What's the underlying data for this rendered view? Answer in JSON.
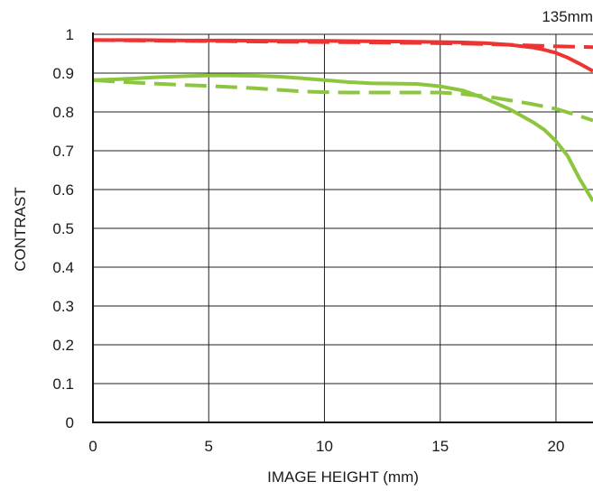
{
  "chart_data": {
    "type": "line",
    "annotation": "135mm",
    "xlabel": "IMAGE HEIGHT (mm)",
    "ylabel": "CONTRAST",
    "xlim": [
      0,
      21.6
    ],
    "ylim": [
      0,
      1
    ],
    "xticks": [
      0,
      5,
      10,
      15,
      20
    ],
    "xtick_labels": [
      "0",
      "5",
      "10",
      "15",
      "20"
    ],
    "yticks": [
      0,
      0.1,
      0.2,
      0.3,
      0.4,
      0.5,
      0.6,
      0.7,
      0.8,
      0.9,
      1
    ],
    "ytick_labels": [
      "0",
      "0.1",
      "0.2",
      "0.3",
      "0.4",
      "0.5",
      "0.6",
      "0.7",
      "0.8",
      "0.9",
      "1"
    ],
    "grid": true,
    "series": [
      {
        "color": "#ee3333",
        "dash": "solid",
        "x": [
          0,
          2,
          4,
          6,
          8,
          10,
          12,
          14,
          15,
          16,
          17,
          18,
          19,
          19.5,
          20,
          20.5,
          21,
          21.6
        ],
        "y": [
          0.985,
          0.985,
          0.984,
          0.984,
          0.983,
          0.983,
          0.982,
          0.981,
          0.98,
          0.979,
          0.977,
          0.973,
          0.966,
          0.96,
          0.952,
          0.94,
          0.925,
          0.905
        ]
      },
      {
        "color": "#ee3333",
        "dash": "dashed",
        "x": [
          0,
          2,
          4,
          6,
          8,
          10,
          12,
          14,
          15,
          16,
          17,
          18,
          19,
          20,
          21,
          21.6
        ],
        "y": [
          0.985,
          0.984,
          0.983,
          0.982,
          0.981,
          0.98,
          0.979,
          0.978,
          0.977,
          0.976,
          0.975,
          0.973,
          0.971,
          0.969,
          0.968,
          0.967
        ]
      },
      {
        "color": "#8cc63f",
        "dash": "solid",
        "x": [
          0,
          1,
          2,
          3,
          4,
          5,
          6,
          7,
          8,
          9,
          10,
          11,
          12,
          13,
          14,
          15,
          16,
          17,
          18,
          19,
          19.5,
          20,
          20.5,
          21,
          21.6
        ],
        "y": [
          0.882,
          0.884,
          0.887,
          0.89,
          0.892,
          0.894,
          0.894,
          0.893,
          0.891,
          0.887,
          0.882,
          0.877,
          0.874,
          0.873,
          0.872,
          0.866,
          0.855,
          0.833,
          0.807,
          0.774,
          0.754,
          0.725,
          0.687,
          0.63,
          0.57
        ]
      },
      {
        "color": "#8cc63f",
        "dash": "dashed",
        "x": [
          0,
          1,
          2,
          3,
          4,
          5,
          6,
          7,
          8,
          9,
          10,
          11,
          12,
          13,
          14,
          15,
          16,
          17,
          18,
          19,
          20,
          21,
          21.6
        ],
        "y": [
          0.882,
          0.878,
          0.875,
          0.872,
          0.869,
          0.867,
          0.864,
          0.861,
          0.857,
          0.853,
          0.851,
          0.85,
          0.85,
          0.85,
          0.85,
          0.85,
          0.846,
          0.84,
          0.83,
          0.82,
          0.808,
          0.79,
          0.778
        ]
      }
    ]
  }
}
